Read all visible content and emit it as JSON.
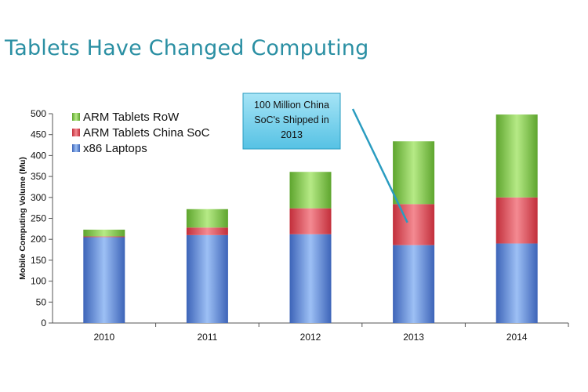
{
  "slide": {
    "title": "Tablets Have Changed Computing"
  },
  "colors": {
    "title": "#2a8fa3",
    "arm_row": "#8fd15a",
    "arm_china": "#e8606a",
    "x86": "#7ba6e6",
    "callout_fill": "#7dd3ec",
    "callout_border": "#2a9cc0"
  },
  "chart_data": {
    "type": "bar",
    "stacked": true,
    "categories": [
      "2010",
      "2011",
      "2012",
      "2013",
      "2014"
    ],
    "series": [
      {
        "name": "x86 Laptops",
        "values": [
          205,
          210,
          212,
          186,
          190
        ]
      },
      {
        "name": "ARM Tablets China SoC",
        "values": [
          2,
          18,
          62,
          98,
          110
        ]
      },
      {
        "name": "ARM Tablets RoW",
        "values": [
          16,
          44,
          87,
          150,
          198
        ]
      }
    ],
    "ylabel": "Mobile Computing Volume (Mu)",
    "ylim": [
      0,
      500
    ],
    "yticks": [
      "0",
      "50",
      "100",
      "150",
      "200",
      "250",
      "300",
      "350",
      "400",
      "450",
      "500"
    ],
    "legend": {
      "position": "top-left",
      "order": [
        "ARM Tablets RoW",
        "ARM Tablets China SoC",
        "x86 Laptops"
      ]
    },
    "annotation": {
      "lines": [
        "100 Million China",
        "SoC's Shipped in",
        "2013"
      ],
      "points_to": "2013"
    }
  }
}
